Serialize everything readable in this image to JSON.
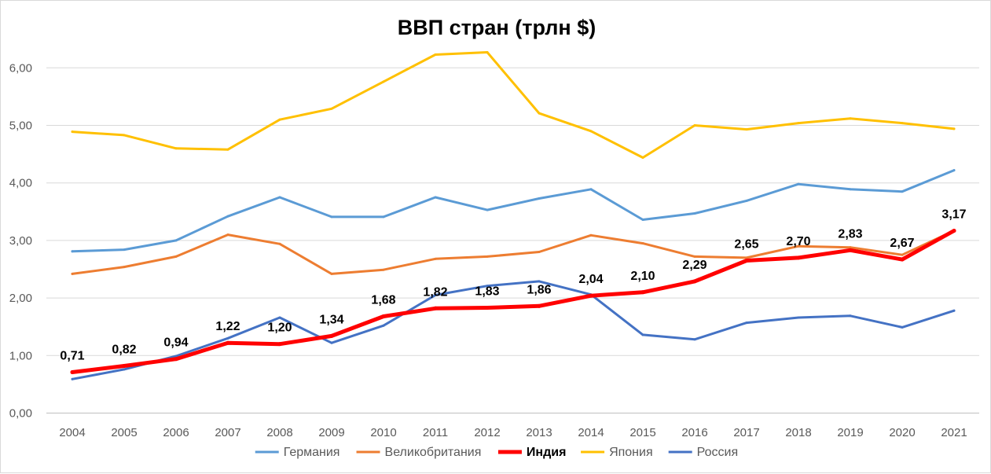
{
  "chart_data": {
    "type": "line",
    "title": "ВВП стран (трлн $)",
    "xlabel": "",
    "ylabel": "",
    "categories": [
      "2004",
      "2005",
      "2006",
      "2007",
      "2008",
      "2009",
      "2010",
      "2011",
      "2012",
      "2013",
      "2014",
      "2015",
      "2016",
      "2017",
      "2018",
      "2019",
      "2020",
      "2021"
    ],
    "ylim": [
      0,
      6.5
    ],
    "yticks": [
      0,
      1,
      2,
      3,
      4,
      5,
      6
    ],
    "ytick_labels": [
      "0,00",
      "1,00",
      "2,00",
      "3,00",
      "4,00",
      "5,00",
      "6,00"
    ],
    "grid": true,
    "legend_position": "bottom",
    "series": [
      {
        "name": "Германия",
        "color": "#5b9bd5",
        "emphasis": false,
        "values": [
          2.81,
          2.84,
          3.0,
          3.42,
          3.75,
          3.41,
          3.41,
          3.75,
          3.53,
          3.73,
          3.89,
          3.36,
          3.47,
          3.69,
          3.98,
          3.89,
          3.85,
          4.22
        ]
      },
      {
        "name": "Великобритания",
        "color": "#ed7d31",
        "emphasis": false,
        "values": [
          2.42,
          2.54,
          2.72,
          3.1,
          2.94,
          2.42,
          2.49,
          2.68,
          2.72,
          2.8,
          3.09,
          2.95,
          2.72,
          2.7,
          2.9,
          2.88,
          2.75,
          3.17
        ]
      },
      {
        "name": "Индия",
        "color": "#ff0000",
        "emphasis": true,
        "values": [
          0.71,
          0.82,
          0.94,
          1.22,
          1.2,
          1.34,
          1.68,
          1.82,
          1.83,
          1.86,
          2.04,
          2.1,
          2.29,
          2.65,
          2.7,
          2.83,
          2.67,
          3.17
        ],
        "data_labels": [
          "0,71",
          "0,82",
          "0,94",
          "1,22",
          "1,20",
          "1,34",
          "1,68",
          "1,82",
          "1,83",
          "1,86",
          "2,04",
          "2,10",
          "2,29",
          "2,65",
          "2,70",
          "2,83",
          "2,67",
          "3,17"
        ]
      },
      {
        "name": "Япония",
        "color": "#ffc000",
        "emphasis": false,
        "values": [
          4.89,
          4.83,
          4.6,
          4.58,
          5.1,
          5.29,
          5.76,
          6.23,
          6.27,
          5.21,
          4.9,
          4.44,
          5.0,
          4.93,
          5.04,
          5.12,
          5.04,
          4.94
        ]
      },
      {
        "name": "Россия",
        "color": "#4472c4",
        "emphasis": false,
        "values": [
          0.59,
          0.76,
          0.99,
          1.3,
          1.66,
          1.22,
          1.52,
          2.05,
          2.21,
          2.29,
          2.06,
          1.36,
          1.28,
          1.57,
          1.66,
          1.69,
          1.49,
          1.78
        ]
      }
    ]
  }
}
